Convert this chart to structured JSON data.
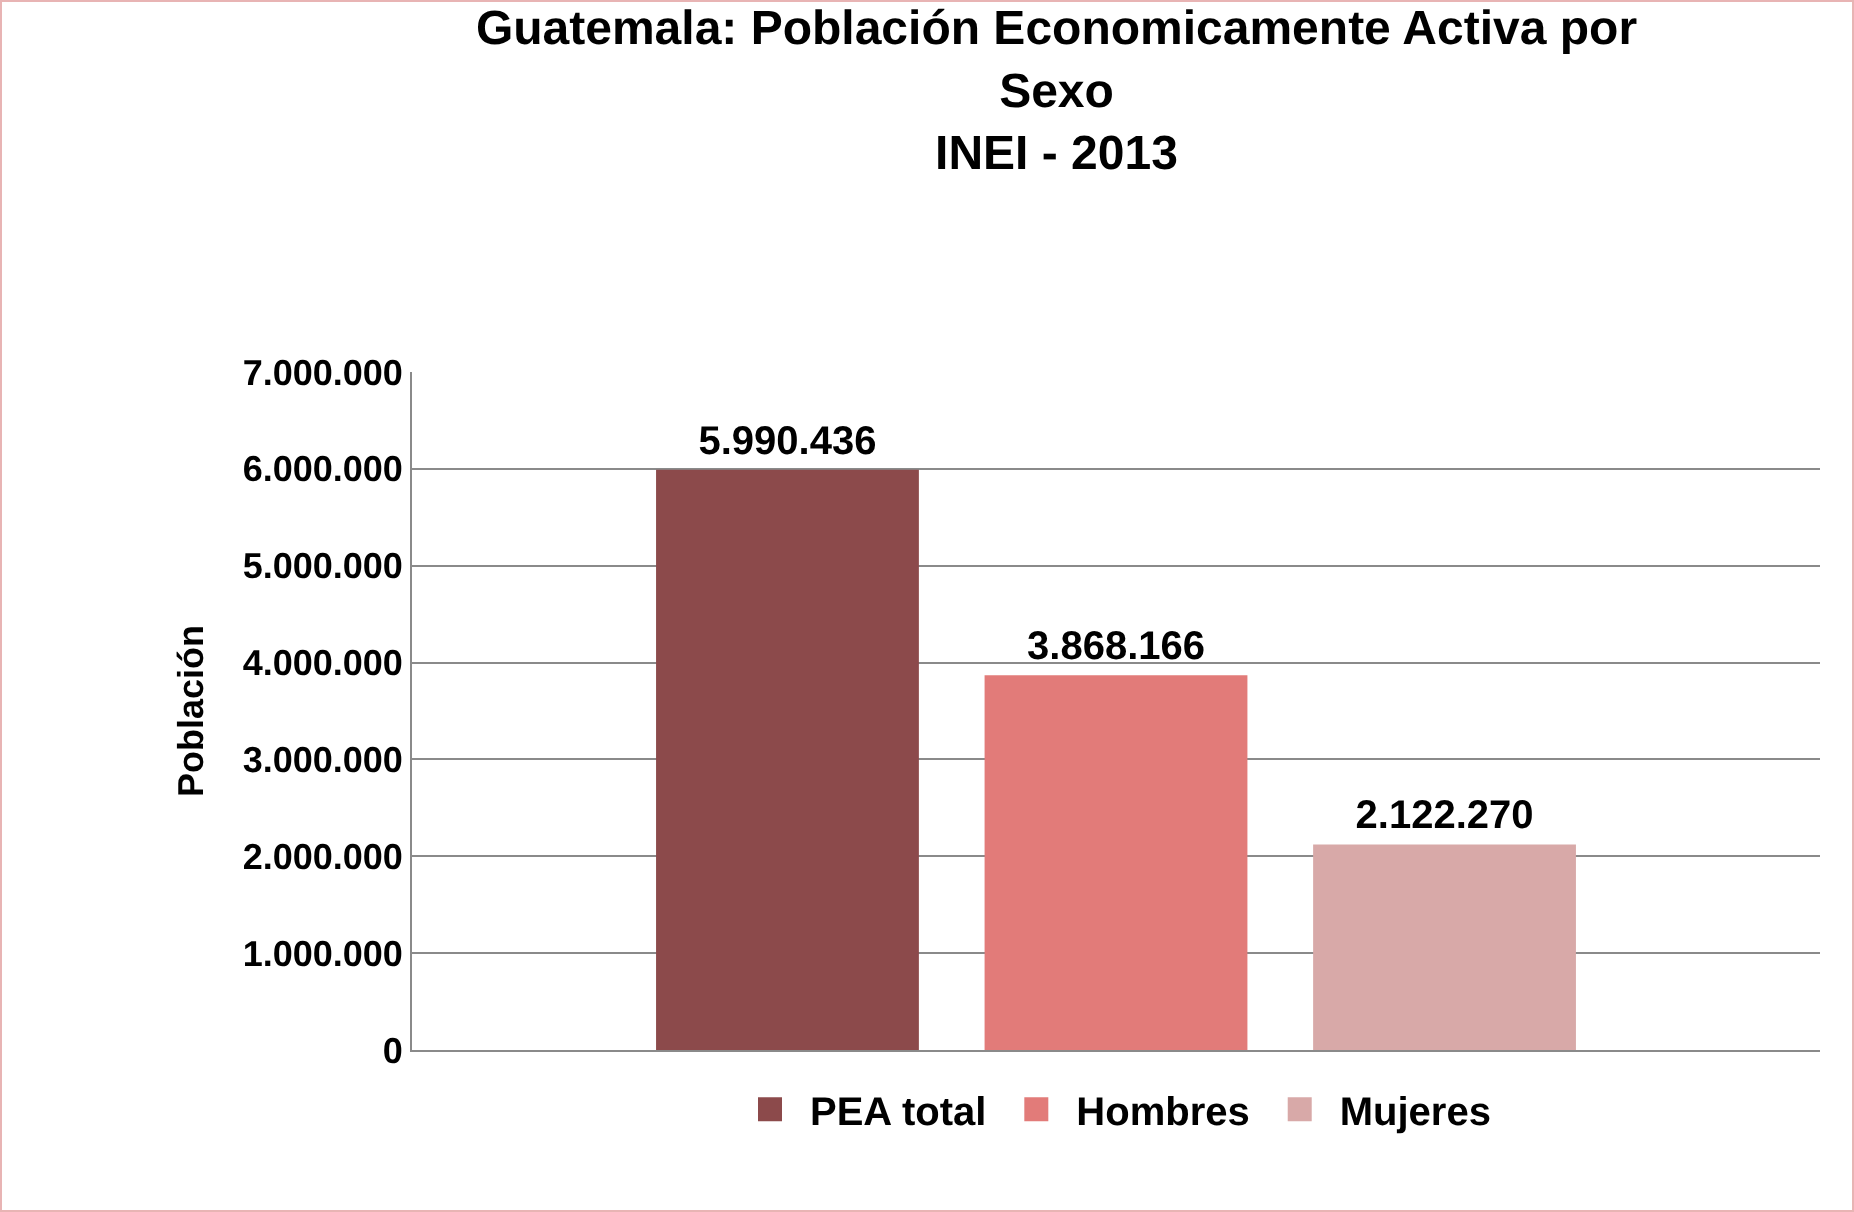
{
  "chart_data": {
    "type": "bar",
    "title": "Guatemala: Población Economicamente Activa por Sexo",
    "subtitle": "INEI - 2013",
    "ylabel": "Población",
    "categories": [
      null
    ],
    "series": [
      {
        "name": "PEA total",
        "color": "#8c4a4b",
        "values": [
          5990436
        ],
        "value_labels": [
          "5.990.436"
        ]
      },
      {
        "name": "Hombres",
        "color": "#e27b79",
        "values": [
          3868166
        ],
        "value_labels": [
          "3.868.166"
        ]
      },
      {
        "name": "Mujeres",
        "color": "#d8a9a8",
        "values": [
          2122270
        ],
        "value_labels": [
          "2.122.270"
        ]
      }
    ],
    "ylim": [
      0,
      7000000
    ],
    "yticks": [
      {
        "value": 0,
        "label": "0"
      },
      {
        "value": 1000000,
        "label": "1.000.000"
      },
      {
        "value": 2000000,
        "label": "2.000.000"
      },
      {
        "value": 3000000,
        "label": "3.000.000"
      },
      {
        "value": 4000000,
        "label": "4.000.000"
      },
      {
        "value": 5000000,
        "label": "5.000.000"
      },
      {
        "value": 6000000,
        "label": "6.000.000"
      },
      {
        "value": 7000000,
        "label": "7.000.000"
      }
    ],
    "grid": "y",
    "legend": "bottom"
  }
}
